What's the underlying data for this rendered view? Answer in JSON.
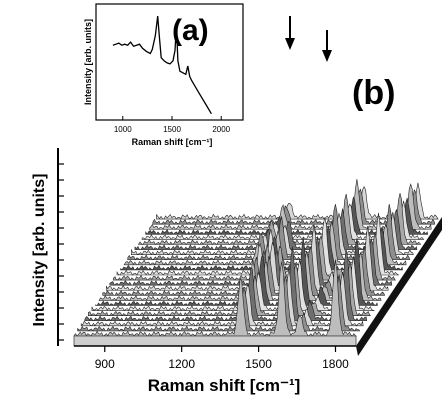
{
  "chart_data": [
    {
      "panel": "(a)",
      "type": "line",
      "xlabel": "Raman shift [cm⁻¹]",
      "ylabel": "Intensity [arb. units]",
      "xlim": [
        850,
        2150
      ],
      "xticks": [
        1000,
        1500,
        2000
      ],
      "xtick_labels": [
        "1000",
        "1500",
        "2000"
      ],
      "series": [
        {
          "x": [
            900,
            930,
            960,
            990,
            1020,
            1050,
            1080,
            1110,
            1140,
            1170,
            1200,
            1240,
            1280,
            1300,
            1330,
            1355,
            1370,
            1390,
            1420,
            1450,
            1480,
            1510,
            1530,
            1545,
            1560,
            1580,
            1600,
            1620,
            1640,
            1660,
            1680,
            1700,
            1750,
            1800,
            1850,
            1900
          ],
          "y": [
            0.7,
            0.71,
            0.72,
            0.7,
            0.71,
            0.7,
            0.73,
            0.69,
            0.7,
            0.71,
            0.67,
            0.64,
            0.62,
            0.66,
            0.79,
            0.98,
            0.8,
            0.58,
            0.55,
            0.53,
            0.52,
            0.55,
            0.65,
            0.88,
            0.55,
            0.45,
            0.44,
            0.43,
            0.42,
            0.5,
            0.4,
            0.36,
            0.28,
            0.2,
            0.12,
            0.04
          ]
        }
      ]
    },
    {
      "panel": "(b)",
      "type": "area",
      "xlabel": "Raman shift [cm⁻¹]",
      "ylabel": "Intensity [arb. units]",
      "xlim": [
        780,
        1880
      ],
      "xticks": [
        900,
        1200,
        1500,
        1800
      ],
      "xtick_labels": [
        "900",
        "1200",
        "1500",
        "1800"
      ],
      "annotations": [
        "arrow at ~1590",
        "arrow at ~1800"
      ],
      "peaks": [
        {
          "x": 1300,
          "rows": "back",
          "level": "medium"
        },
        {
          "x": 1380,
          "rows": "middle",
          "level": "high"
        },
        {
          "x": 1430,
          "rows": "front",
          "level": "high"
        },
        {
          "x": 1590,
          "rows": "all",
          "level": "very high"
        },
        {
          "x": 1660,
          "rows": "front",
          "level": "low"
        },
        {
          "x": 1800,
          "rows": "all",
          "level": "very high"
        }
      ],
      "series_count": 24
    }
  ]
}
